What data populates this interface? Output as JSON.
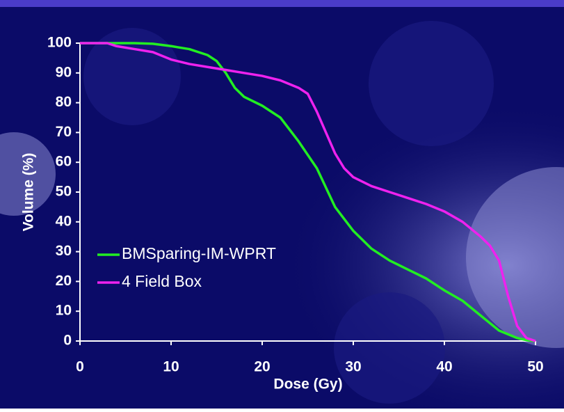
{
  "chart_data": {
    "type": "line",
    "xlabel": "Dose (Gy)",
    "ylabel": "Volume (%)",
    "xlim": [
      0,
      50
    ],
    "ylim": [
      0,
      100
    ],
    "xticks": [
      0,
      10,
      20,
      30,
      40,
      50
    ],
    "yticks": [
      0,
      10,
      20,
      30,
      40,
      50,
      60,
      70,
      80,
      90,
      100
    ],
    "legend": "lower-left",
    "series": [
      {
        "name": "BMSparing-IM-WPRT",
        "color": "#22ee22",
        "x": [
          0,
          2,
          4,
          6,
          8,
          10,
          12,
          14,
          15,
          16,
          17,
          18,
          20,
          22,
          24,
          26,
          28,
          30,
          32,
          34,
          36,
          38,
          40,
          42,
          44,
          46,
          48,
          49,
          50
        ],
        "values": [
          100,
          100,
          100,
          100,
          99.8,
          99,
          98,
          96,
          94,
          90,
          85,
          82,
          79,
          75,
          67,
          58,
          45,
          37,
          31,
          27,
          24,
          21,
          17,
          13.5,
          8.5,
          3.5,
          1,
          0.3,
          0
        ]
      },
      {
        "name": "4 Field Box",
        "color": "#ee22ee",
        "x": [
          0,
          3,
          4,
          6,
          8,
          10,
          12,
          14,
          16,
          18,
          20,
          22,
          24,
          25,
          26,
          27,
          28,
          29,
          30,
          32,
          34,
          36,
          38,
          40,
          42,
          44,
          45,
          46,
          47,
          48,
          49,
          50
        ],
        "values": [
          100,
          100,
          99,
          98,
          97,
          94.5,
          93,
          92,
          91,
          90,
          89,
          87.5,
          85,
          83,
          77,
          70,
          63,
          58,
          55,
          52,
          50,
          48,
          46,
          43.5,
          40,
          35,
          32,
          27,
          15,
          5,
          1,
          0
        ]
      }
    ]
  }
}
